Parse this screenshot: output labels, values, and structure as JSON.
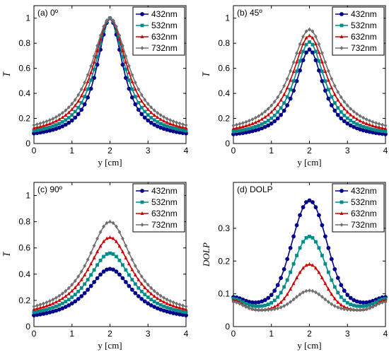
{
  "chart_data": [
    {
      "type": "line",
      "title": "(a) 0º",
      "xlabel": "y [cm]",
      "ylabel": "I̅",
      "xlim": [
        0,
        4
      ],
      "ylim": [
        0,
        1.1
      ],
      "xticks": [
        "0",
        "1",
        "2",
        "3",
        "4"
      ],
      "yticks": [
        "0",
        "0.2",
        "0.4",
        "0.6",
        "0.8",
        "1"
      ],
      "legend_position": "top-right",
      "grid": false,
      "series": [
        {
          "name": "432nm",
          "color": "#00008b",
          "marker": "circle",
          "peak": 1.0,
          "base": 0.04,
          "width": 0.42
        },
        {
          "name": "532nm",
          "color": "#008b8b",
          "marker": "square",
          "peak": 1.0,
          "base": 0.05,
          "width": 0.48
        },
        {
          "name": "632nm",
          "color": "#cc0000",
          "marker": "triangle",
          "peak": 1.0,
          "base": 0.06,
          "width": 0.54
        },
        {
          "name": "732nm",
          "color": "#707070",
          "marker": "diamond",
          "peak": 1.0,
          "base": 0.07,
          "width": 0.6
        }
      ]
    },
    {
      "type": "line",
      "title": "(b) 45º",
      "xlabel": "y [cm]",
      "ylabel": "I̅",
      "xlim": [
        0,
        4
      ],
      "ylim": [
        0,
        1.1
      ],
      "xticks": [
        "0",
        "1",
        "2",
        "3",
        "4"
      ],
      "yticks": [
        "0",
        "0.2",
        "0.4",
        "0.6",
        "0.8",
        "1"
      ],
      "legend_position": "top-right",
      "grid": false,
      "series": [
        {
          "name": "432nm",
          "color": "#00008b",
          "marker": "circle",
          "peak": 0.75,
          "base": 0.04,
          "width": 0.45
        },
        {
          "name": "532nm",
          "color": "#008b8b",
          "marker": "square",
          "peak": 0.81,
          "base": 0.05,
          "width": 0.5
        },
        {
          "name": "632nm",
          "color": "#cc0000",
          "marker": "triangle",
          "peak": 0.86,
          "base": 0.06,
          "width": 0.56
        },
        {
          "name": "732nm",
          "color": "#707070",
          "marker": "diamond",
          "peak": 0.91,
          "base": 0.07,
          "width": 0.62
        }
      ]
    },
    {
      "type": "line",
      "title": "(c) 90º",
      "xlabel": "y [cm]",
      "ylabel": "I̅",
      "xlim": [
        0,
        4
      ],
      "ylim": [
        0,
        1.1
      ],
      "xticks": [
        "0",
        "1",
        "2",
        "3",
        "4"
      ],
      "yticks": [
        "0",
        "0.2",
        "0.4",
        "0.6",
        "0.8",
        "1"
      ],
      "legend_position": "top-right",
      "grid": false,
      "series": [
        {
          "name": "432nm",
          "color": "#00008b",
          "marker": "circle",
          "peak": 0.44,
          "base": 0.04,
          "width": 0.72
        },
        {
          "name": "532nm",
          "color": "#008b8b",
          "marker": "square",
          "peak": 0.56,
          "base": 0.05,
          "width": 0.72
        },
        {
          "name": "632nm",
          "color": "#cc0000",
          "marker": "triangle",
          "peak": 0.68,
          "base": 0.06,
          "width": 0.72
        },
        {
          "name": "732nm",
          "color": "#707070",
          "marker": "diamond",
          "peak": 0.8,
          "base": 0.07,
          "width": 0.72
        }
      ]
    },
    {
      "type": "line",
      "title": "(d) DOLP",
      "xlabel": "y [cm]",
      "ylabel": "DOLP",
      "xlim": [
        0,
        4
      ],
      "ylim": [
        0,
        0.44
      ],
      "xticks": [
        "0",
        "1",
        "2",
        "3",
        "4"
      ],
      "yticks": [
        "0",
        "0.1",
        "0.2",
        "0.3"
      ],
      "legend_position": "top-right",
      "grid": false,
      "series": [
        {
          "name": "432nm",
          "color": "#00008b",
          "marker": "circle",
          "peak": 0.385,
          "base": 0.09,
          "dip": 0.07,
          "width": 0.45
        },
        {
          "name": "532nm",
          "color": "#008b8b",
          "marker": "square",
          "peak": 0.275,
          "base": 0.085,
          "dip": 0.06,
          "width": 0.42
        },
        {
          "name": "632nm",
          "color": "#cc0000",
          "marker": "triangle",
          "peak": 0.19,
          "base": 0.08,
          "dip": 0.05,
          "width": 0.4
        },
        {
          "name": "732nm",
          "color": "#707070",
          "marker": "diamond",
          "peak": 0.11,
          "base": 0.075,
          "dip": 0.05,
          "width": 0.38
        }
      ]
    }
  ]
}
